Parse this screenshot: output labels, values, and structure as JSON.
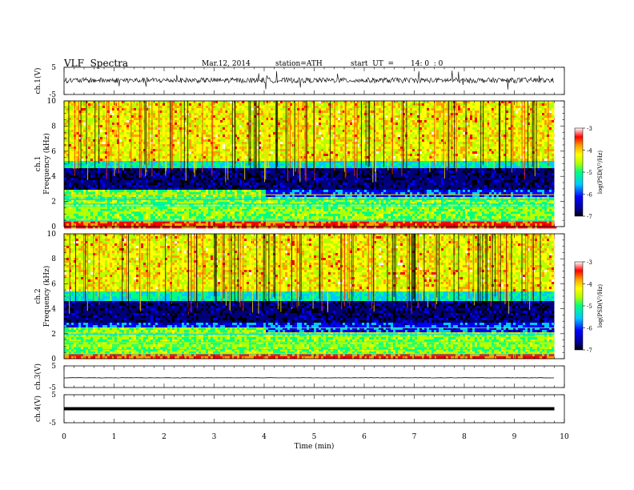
{
  "header": {
    "title": "VLF  Spectra",
    "date": "Mar.12, 2014",
    "station": "station=ATH",
    "start_label": "start  UT  =",
    "start_time": "14: 0  : 0"
  },
  "panels": {
    "ch1_wave": {
      "ylabel": "ch.1(V)",
      "ticks": [
        "5",
        "-5"
      ]
    },
    "ch1_spec": {
      "ylabel_top": "ch.1",
      "ylabel": "Frequency  (kHz)",
      "ticks": [
        "10",
        "8",
        "6",
        "4",
        "2",
        "0"
      ]
    },
    "ch2_spec": {
      "ylabel_top": "ch.2",
      "ylabel": "Frequency  (kHz)",
      "ticks": [
        "10",
        "8",
        "6",
        "4",
        "2",
        "0"
      ]
    },
    "ch3_wave": {
      "ylabel": "ch.3(V)",
      "ticks": [
        "5",
        "-5"
      ]
    },
    "ch4_wave": {
      "ylabel": "ch.4(V)",
      "ticks": [
        "5",
        "-5"
      ]
    }
  },
  "colorbar": {
    "label": "log(PSD(V²/Hz)",
    "ticks": [
      "-3",
      "-4",
      "-5",
      "-6",
      "-7"
    ]
  },
  "xaxis": {
    "label": "Time  (min)",
    "ticks": [
      "0",
      "1",
      "2",
      "3",
      "4",
      "5",
      "6",
      "7",
      "8",
      "9",
      "10"
    ]
  },
  "chart_data": {
    "type": "heatmap",
    "title": "VLF  Spectra",
    "xlabel": "Time  (min)",
    "xlim": [
      0,
      10
    ],
    "data_extent_min": 9.8,
    "band_change_time_min": 4,
    "panels": [
      {
        "name": "ch.1(V)",
        "type": "line",
        "ylim": [
          -5,
          5
        ],
        "baseline": 0.2,
        "noise_amplitude": 1.2
      },
      {
        "name": "ch.1 Frequency (kHz)",
        "type": "heatmap",
        "ylim": [
          0,
          10
        ],
        "z_label": "log(PSD(V²/Hz)",
        "zlim": [
          -7,
          -3
        ],
        "dark_band_khz": [
          3,
          5
        ],
        "low_band_edge_khz_before": 3,
        "low_band_edge_khz_after": 2.5
      },
      {
        "name": "ch.2 Frequency (kHz)",
        "type": "heatmap",
        "ylim": [
          0,
          10
        ],
        "z_label": "log(PSD(V²/Hz)",
        "zlim": [
          -7,
          -3
        ],
        "dark_band_khz": [
          3,
          5
        ],
        "low_band_edge_khz_before": 2.5,
        "low_band_edge_khz_after": 2.2
      },
      {
        "name": "ch.3(V)",
        "type": "line",
        "ylim": [
          -5,
          5
        ],
        "baseline": -0.5
      },
      {
        "name": "ch.4(V)",
        "type": "line",
        "ylim": [
          -5,
          5
        ],
        "baseline": 0
      }
    ],
    "colormap": [
      "#000000",
      "#00007a",
      "#0000ff",
      "#00c8ff",
      "#00ff80",
      "#b4ff00",
      "#ffff00",
      "#ffa000",
      "#ff0000",
      "#ffffff"
    ]
  }
}
